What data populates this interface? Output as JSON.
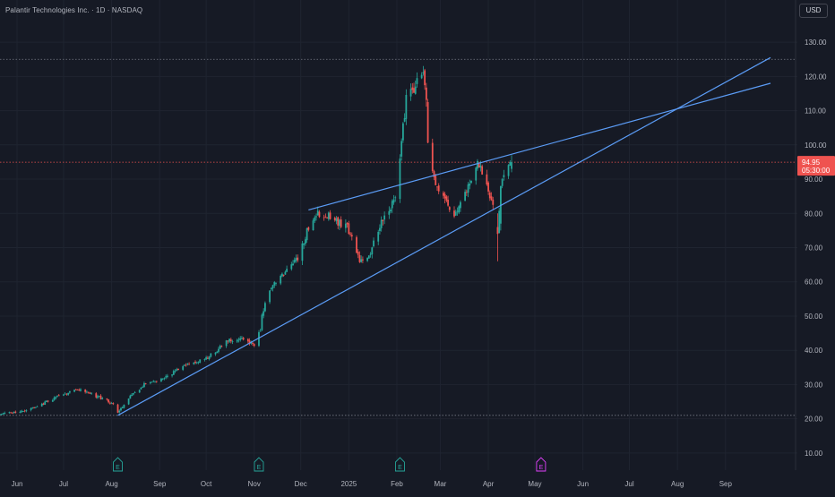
{
  "header": {
    "title": "Palantir Technologies Inc. · 1D · NASDAQ",
    "currency": "USD"
  },
  "colors": {
    "background": "#161a25",
    "up": "#26a69a",
    "down": "#ef5350",
    "trendline": "#5b9cf6",
    "grid": "#1f2430",
    "axis_text": "#b2b5be",
    "earnings": "#26a69a",
    "dividend": "#e040fb"
  },
  "chart_data": {
    "type": "candlestick",
    "symbol": "Palantir Technologies Inc.",
    "interval": "1D",
    "exchange": "NASDAQ",
    "currency": "USD",
    "x_range": [
      "2024-05-21",
      "2025-09-30"
    ],
    "y_range": [
      5,
      135
    ],
    "y_ticks": [
      10,
      20,
      30,
      40,
      50,
      60,
      70,
      80,
      90,
      100,
      110,
      120,
      130
    ],
    "y_tick_labels": [
      "10.00",
      "20.00",
      "30.00",
      "40.00",
      "50.00",
      "60.00",
      "70.00",
      "80.00",
      "90.00",
      "100.00",
      "110.00",
      "120.00",
      "130.00"
    ],
    "x_ticks": [
      {
        "date": "2024-06-01",
        "label": "Jun"
      },
      {
        "date": "2024-07-01",
        "label": "Jul"
      },
      {
        "date": "2024-08-01",
        "label": "Aug"
      },
      {
        "date": "2024-09-01",
        "label": "Sep"
      },
      {
        "date": "2024-10-01",
        "label": "Oct"
      },
      {
        "date": "2024-11-01",
        "label": "Nov"
      },
      {
        "date": "2024-12-01",
        "label": "Dec"
      },
      {
        "date": "2025-01-01",
        "label": "2025"
      },
      {
        "date": "2025-02-01",
        "label": "Feb"
      },
      {
        "date": "2025-03-01",
        "label": "Mar"
      },
      {
        "date": "2025-04-01",
        "label": "Apr"
      },
      {
        "date": "2025-05-01",
        "label": "May"
      },
      {
        "date": "2025-06-01",
        "label": "Jun"
      },
      {
        "date": "2025-07-01",
        "label": "Jul"
      },
      {
        "date": "2025-08-01",
        "label": "Aug"
      },
      {
        "date": "2025-09-01",
        "label": "Sep"
      }
    ],
    "anchors": [
      [
        "2024-05-21",
        21.2
      ],
      [
        "2024-06-10",
        22.8
      ],
      [
        "2024-06-25",
        26.0
      ],
      [
        "2024-07-10",
        28.5
      ],
      [
        "2024-07-20",
        27.0
      ],
      [
        "2024-08-02",
        24.5
      ],
      [
        "2024-08-05",
        22.0
      ],
      [
        "2024-08-12",
        26.0
      ],
      [
        "2024-08-23",
        30.5
      ],
      [
        "2024-09-05",
        32.0
      ],
      [
        "2024-09-15",
        35.0
      ],
      [
        "2024-09-30",
        37.5
      ],
      [
        "2024-10-08",
        40.0
      ],
      [
        "2024-10-16",
        43.0
      ],
      [
        "2024-10-25",
        43.5
      ],
      [
        "2024-11-01",
        41.0
      ],
      [
        "2024-11-05",
        46.0
      ],
      [
        "2024-11-06",
        51.0
      ],
      [
        "2024-11-12",
        58.0
      ],
      [
        "2024-11-20",
        62.0
      ],
      [
        "2024-11-29",
        67.0
      ],
      [
        "2024-12-06",
        76.0
      ],
      [
        "2024-12-12",
        80.0
      ],
      [
        "2024-12-20",
        79.0
      ],
      [
        "2024-12-31",
        76.0
      ],
      [
        "2025-01-08",
        66.0
      ],
      [
        "2025-01-14",
        67.0
      ],
      [
        "2025-01-22",
        78.0
      ],
      [
        "2025-01-31",
        84.0
      ],
      [
        "2025-02-04",
        101.0
      ],
      [
        "2025-02-07",
        113.0
      ],
      [
        "2025-02-13",
        117.0
      ],
      [
        "2025-02-18",
        123.0
      ],
      [
        "2025-02-20",
        112.0
      ],
      [
        "2025-02-21",
        101.0
      ],
      [
        "2025-02-26",
        88.0
      ],
      [
        "2025-03-04",
        85.0
      ],
      [
        "2025-03-10",
        79.0
      ],
      [
        "2025-03-18",
        86.0
      ],
      [
        "2025-03-25",
        96.0
      ],
      [
        "2025-03-28",
        92.0
      ],
      [
        "2025-04-03",
        84.0
      ],
      [
        "2025-04-07",
        74.0
      ],
      [
        "2025-04-09",
        88.0
      ],
      [
        "2025-04-14",
        93.0
      ],
      [
        "2025-04-16",
        94.95
      ]
    ],
    "special_candles": [
      {
        "date": "2025-04-07",
        "open": 76.0,
        "high": 80.0,
        "low": 66.0,
        "close": 74.0
      },
      {
        "date": "2025-04-09",
        "open": 77.0,
        "high": 88.0,
        "low": 75.0,
        "close": 88.0
      },
      {
        "date": "2025-04-16",
        "open": 93.0,
        "high": 97.0,
        "low": 92.0,
        "close": 94.95
      }
    ],
    "trendlines": [
      {
        "name": "lower-trendline",
        "points": [
          [
            "2024-08-05",
            21.0
          ],
          [
            "2025-09-30",
            125.5
          ]
        ]
      },
      {
        "name": "upper-trendline",
        "points": [
          [
            "2024-12-06",
            81.0
          ],
          [
            "2025-09-30",
            118.0
          ]
        ]
      }
    ],
    "horizontal_lines": [
      {
        "name": "high-level-line",
        "value": 125.0,
        "color": "#787b86"
      },
      {
        "name": "current-price-line",
        "value": 94.95,
        "color": "#ef5350"
      },
      {
        "name": "low-level-line",
        "value": 21.0,
        "color": "#787b86"
      }
    ],
    "last_price": "94.95",
    "countdown": "05:30:00",
    "events": [
      {
        "date": "2024-08-05",
        "label": "E",
        "kind": "earnings"
      },
      {
        "date": "2024-11-04",
        "label": "E",
        "kind": "earnings"
      },
      {
        "date": "2025-02-03",
        "label": "E",
        "kind": "earnings"
      },
      {
        "date": "2025-05-05",
        "label": "E",
        "kind": "dividend"
      }
    ]
  }
}
